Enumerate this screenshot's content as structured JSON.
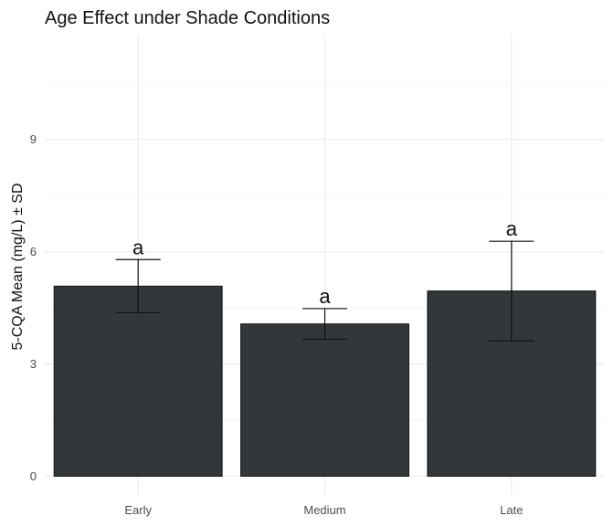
{
  "chart_data": {
    "type": "bar",
    "title": "Age Effect under Shade Conditions",
    "xlabel": "",
    "ylabel": "5-CQA Mean (mg/L) ± SD",
    "categories": [
      "Early",
      "Medium",
      "Late"
    ],
    "values": [
      5.08,
      4.07,
      4.95
    ],
    "sd": [
      0.71,
      0.41,
      1.33
    ],
    "significance_labels": [
      "a",
      "a",
      "a"
    ],
    "ylim": [
      -0.5,
      11.8
    ],
    "y_ticks": [
      0,
      3,
      6,
      9
    ],
    "y_tick_labels": [
      "0",
      "3",
      "6",
      "9"
    ],
    "grid": true,
    "legend": "none",
    "colors": {
      "bar": "#32373a"
    }
  }
}
